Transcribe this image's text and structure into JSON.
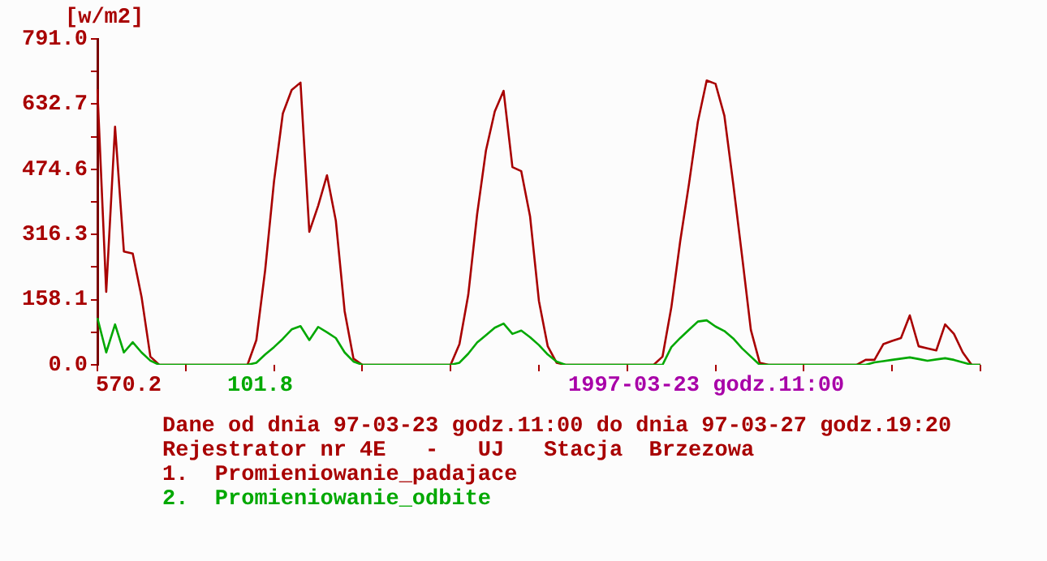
{
  "chart_data": {
    "type": "line",
    "ylabel": "[w/m2]",
    "categories": [
      null,
      null,
      null,
      null,
      null,
      null,
      null,
      null,
      null,
      null,
      null,
      null,
      null,
      null,
      null,
      null,
      null,
      null,
      null,
      null,
      null,
      null,
      null,
      null,
      null,
      null,
      null,
      null,
      null,
      null,
      null,
      null,
      null,
      null,
      null,
      null,
      null,
      null,
      null,
      null,
      null,
      null,
      null,
      null,
      null,
      null,
      null,
      null,
      null,
      null,
      null,
      null,
      null,
      null,
      null,
      null,
      null,
      null,
      null,
      null,
      null,
      null,
      null,
      null,
      null,
      null,
      null,
      null,
      null,
      null,
      null,
      null,
      null,
      null,
      null,
      null,
      null,
      null,
      null,
      null,
      null,
      null,
      null,
      null,
      null,
      null,
      null,
      null,
      null,
      null,
      null,
      null,
      null,
      null,
      null,
      null,
      null,
      null,
      null,
      null,
      null
    ],
    "ylim": [
      0,
      791.0
    ],
    "yticks": [
      {
        "value": 0,
        "label": "0.0"
      },
      {
        "value": 79.05,
        "label": null
      },
      {
        "value": 158.1,
        "label": "158.1"
      },
      {
        "value": 237.2,
        "label": null
      },
      {
        "value": 316.3,
        "label": "316.3"
      },
      {
        "value": 395.45,
        "label": null
      },
      {
        "value": 474.6,
        "label": "474.6"
      },
      {
        "value": 553.65,
        "label": null
      },
      {
        "value": 632.7,
        "label": "632.7"
      },
      {
        "value": 711.85,
        "label": null
      },
      {
        "value": 791.0,
        "label": "791.0"
      }
    ],
    "tick_labels": "y",
    "marker": "none",
    "line_style": "solid",
    "annotations": [
      "570.2",
      "101.8",
      "1997-03-23 godz.11:00",
      "Dane od dnia 97-03-23 godz.11:00 do dnia 97-03-27 godz.19:20",
      "Rejestrator nr 4E   -   UJ   Stacja  Brzezowa"
    ],
    "series": [
      {
        "name": "1.  Promieniowanie_padajace",
        "color": "#a80000",
        "values": [
          669,
          177,
          578,
          275,
          270,
          165,
          20,
          0,
          0,
          0,
          0,
          0,
          0,
          0,
          0,
          0,
          0,
          0,
          60,
          230,
          445,
          610,
          667,
          685,
          323,
          386,
          460,
          350,
          130,
          15,
          0,
          0,
          0,
          0,
          0,
          0,
          0,
          0,
          0,
          0,
          0,
          50,
          170,
          365,
          520,
          615,
          665,
          480,
          470,
          360,
          155,
          45,
          5,
          0,
          0,
          0,
          0,
          0,
          0,
          0,
          0,
          0,
          0,
          0,
          20,
          140,
          300,
          440,
          590,
          690,
          682,
          605,
          440,
          265,
          85,
          5,
          0,
          0,
          0,
          0,
          0,
          0,
          0,
          0,
          0,
          0,
          0,
          12,
          12,
          50,
          58,
          65,
          120,
          45,
          40,
          35,
          98,
          75,
          30,
          0,
          0
        ]
      },
      {
        "name": "2.  Promieniowanie_odbite",
        "color": "#00a800",
        "values": [
          114,
          30,
          98,
          30,
          55,
          30,
          10,
          0,
          0,
          0,
          0,
          0,
          0,
          0,
          0,
          0,
          0,
          0,
          5,
          25,
          43,
          63,
          86,
          94,
          60,
          92,
          79,
          65,
          30,
          8,
          0,
          0,
          0,
          0,
          0,
          0,
          0,
          0,
          0,
          0,
          0,
          5,
          27,
          54,
          72,
          90,
          100,
          75,
          83,
          67,
          48,
          25,
          8,
          0,
          0,
          0,
          0,
          0,
          0,
          0,
          0,
          0,
          0,
          0,
          0,
          43,
          65,
          85,
          105,
          108,
          93,
          82,
          64,
          40,
          20,
          0,
          0,
          0,
          0,
          0,
          0,
          0,
          0,
          0,
          0,
          0,
          0,
          0,
          6,
          9,
          12,
          15,
          18,
          14,
          10,
          13,
          16,
          12,
          6,
          0,
          0
        ]
      }
    ]
  }
}
